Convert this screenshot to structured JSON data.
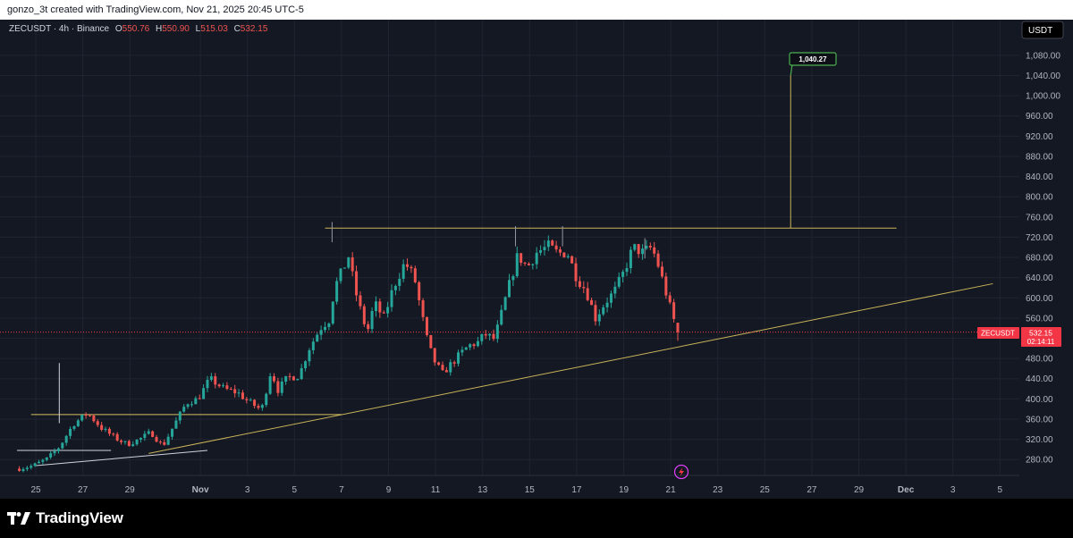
{
  "header": {
    "text": "gonzo_3t created with TradingView.com, Nov 21, 2025 20:45 UTC-5"
  },
  "legend": {
    "symbol": "ZECUSDT · 4h · Binance",
    "o_label": "O",
    "o_value": "550.76",
    "h_label": "H",
    "h_value": "550.90",
    "l_label": "L",
    "l_value": "515.03",
    "c_label": "C",
    "c_value": "532.15"
  },
  "currency_button": "USDT",
  "footer": {
    "brand": "TradingView"
  },
  "colors": {
    "up": "#26a69a",
    "down": "#ef5350",
    "grid": "#1f2430",
    "axis_text": "#b2b5be",
    "trendline": "#c9b458",
    "price_label": "#f23645",
    "target_box": "#4caf50"
  },
  "chart_data": {
    "type": "candlestick",
    "symbol": "ZECUSDT",
    "interval": "4h",
    "exchange": "Binance",
    "y_ticks": [
      280,
      320,
      360,
      400,
      440,
      480,
      520,
      560,
      600,
      640,
      680,
      720,
      760,
      800,
      840,
      880,
      920,
      960,
      1000,
      1040,
      1080
    ],
    "y_tick_labels": [
      "280.00",
      "320.00",
      "360.00",
      "400.00",
      "440.00",
      "480.00",
      "520.00",
      "560.00",
      "600.00",
      "640.00",
      "680.00",
      "720.00",
      "760.00",
      "800.00",
      "840.00",
      "880.00",
      "920.00",
      "960.00",
      "1,000.00",
      "1,040.00",
      "1,080.00"
    ],
    "x_ticks": [
      {
        "day": 25,
        "label": "25"
      },
      {
        "day": 27,
        "label": "27"
      },
      {
        "day": 29,
        "label": "29"
      },
      {
        "day": 32,
        "label": "Nov"
      },
      {
        "day": 34,
        "label": "3"
      },
      {
        "day": 36,
        "label": "5"
      },
      {
        "day": 38,
        "label": "7"
      },
      {
        "day": 40,
        "label": "9"
      },
      {
        "day": 42,
        "label": "11"
      },
      {
        "day": 44,
        "label": "13"
      },
      {
        "day": 46,
        "label": "15"
      },
      {
        "day": 48,
        "label": "17"
      },
      {
        "day": 50,
        "label": "19"
      },
      {
        "day": 52,
        "label": "21"
      },
      {
        "day": 54,
        "label": "23"
      },
      {
        "day": 56,
        "label": "25"
      },
      {
        "day": 58,
        "label": "27"
      },
      {
        "day": 60,
        "label": "29"
      },
      {
        "day": 62,
        "label": "Dec"
      },
      {
        "day": 64,
        "label": "3"
      },
      {
        "day": 66,
        "label": "5"
      }
    ],
    "last_price": {
      "symbol": "ZECUSDT",
      "price": "532.15",
      "countdown": "02:14:11"
    },
    "target_label": "1,040.27",
    "annotations": {
      "resistance": {
        "price": 738,
        "from_day": 37.3,
        "to_day": 61.6
      },
      "ascending_trendline": {
        "from": {
          "day": 29.8,
          "price": 292
        },
        "to": {
          "day": 65.7,
          "price": 628
        }
      },
      "upper_box_line": {
        "price": 369,
        "from_day": 24.8,
        "to_day": 38
      },
      "lower_box_line": {
        "price": 298,
        "from_day": 24.2,
        "to_day": 28.2
      },
      "lower_trendline": {
        "from": {
          "day": 25.0,
          "price": 268
        },
        "to": {
          "day": 32.3,
          "price": 298
        }
      },
      "target_line": {
        "day": 57.1,
        "from_price": 738,
        "to_price": 1040.27
      },
      "spike_line": {
        "day": 26.0,
        "from_price": 352,
        "to_price": 471
      }
    },
    "closes_anchors": [
      [
        24.3,
        262
      ],
      [
        24.9,
        268
      ],
      [
        25.5,
        282
      ],
      [
        26.0,
        305
      ],
      [
        26.6,
        350
      ],
      [
        27.2,
        372
      ],
      [
        27.8,
        342
      ],
      [
        28.4,
        322
      ],
      [
        28.9,
        310
      ],
      [
        29.4,
        320
      ],
      [
        29.9,
        334
      ],
      [
        30.4,
        306
      ],
      [
        30.9,
        350
      ],
      [
        31.4,
        392
      ],
      [
        31.9,
        400
      ],
      [
        32.4,
        440
      ],
      [
        33.0,
        420
      ],
      [
        33.6,
        412
      ],
      [
        34.0,
        396
      ],
      [
        34.6,
        378
      ],
      [
        35.0,
        456
      ],
      [
        35.3,
        418
      ],
      [
        35.7,
        442
      ],
      [
        36.2,
        446
      ],
      [
        36.6,
        498
      ],
      [
        37.1,
        540
      ],
      [
        37.5,
        558
      ],
      [
        37.7,
        620
      ],
      [
        38.0,
        650
      ],
      [
        38.3,
        682
      ],
      [
        38.6,
        612
      ],
      [
        38.9,
        560
      ],
      [
        39.1,
        532
      ],
      [
        39.4,
        590
      ],
      [
        39.8,
        560
      ],
      [
        40.2,
        620
      ],
      [
        40.7,
        670
      ],
      [
        41.1,
        640
      ],
      [
        41.4,
        570
      ],
      [
        41.7,
        505
      ],
      [
        42.0,
        470
      ],
      [
        42.3,
        450
      ],
      [
        42.6,
        466
      ],
      [
        43.0,
        486
      ],
      [
        43.4,
        505
      ],
      [
        43.8,
        512
      ],
      [
        44.1,
        528
      ],
      [
        44.5,
        518
      ],
      [
        44.8,
        568
      ],
      [
        45.1,
        620
      ],
      [
        45.5,
        685
      ],
      [
        45.9,
        660
      ],
      [
        46.3,
        690
      ],
      [
        46.8,
        702
      ],
      [
        47.2,
        688
      ],
      [
        47.6,
        690
      ],
      [
        48.0,
        640
      ],
      [
        48.4,
        615
      ],
      [
        48.8,
        560
      ],
      [
        49.2,
        590
      ],
      [
        49.6,
        612
      ],
      [
        50.0,
        650
      ],
      [
        50.4,
        700
      ],
      [
        50.8,
        690
      ],
      [
        51.2,
        700
      ],
      [
        51.5,
        660
      ],
      [
        51.8,
        610
      ],
      [
        52.1,
        560
      ],
      [
        52.35,
        532.15
      ]
    ]
  }
}
